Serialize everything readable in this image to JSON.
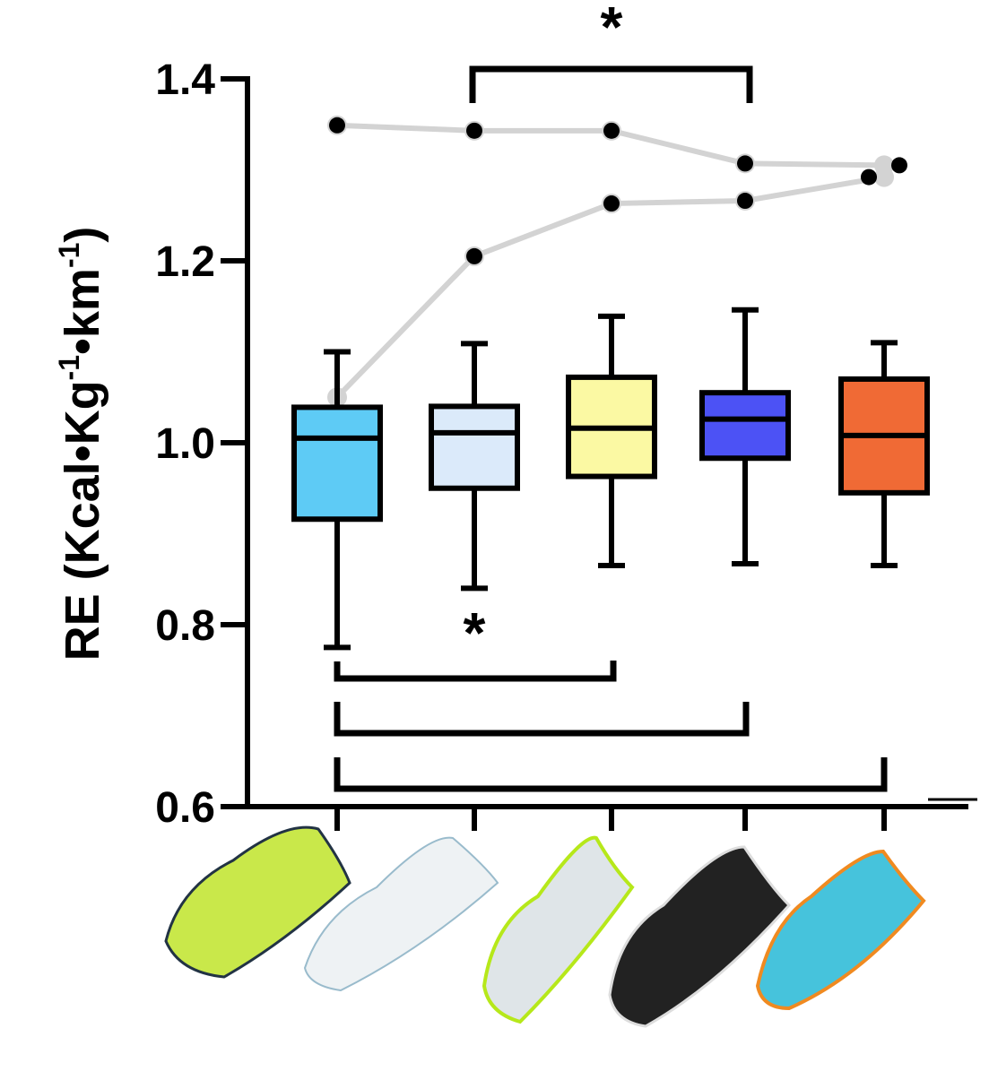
{
  "chart_data": {
    "type": "box",
    "y_label": [
      "RE (Kcal•Kg",
      "-1",
      "•km",
      "-1",
      ")"
    ],
    "categories": [
      null,
      null,
      null,
      null,
      null
    ],
    "ylim": [
      0.6,
      1.4
    ],
    "yticks": [
      0.6,
      0.8,
      {
        "value": 1,
        "label": "1.0"
      },
      1.2,
      1.4
    ],
    "annotations": [
      "*",
      "*"
    ],
    "series": [
      {
        "color": "#5ecbf5",
        "whisker_low": 0.775,
        "q1": 0.916,
        "median": 1.005,
        "q3": 1.039,
        "whisker_high": 1.1,
        "outliers": [
          1.349
        ]
      },
      {
        "color": "#dbeafa",
        "whisker_low": 0.84,
        "q1": 0.95,
        "median": 1.011,
        "q3": 1.04,
        "whisker_high": 1.109,
        "outliers": [
          1.343,
          1.205
        ]
      },
      {
        "color": "#fbf9a3",
        "whisker_low": 0.865,
        "q1": 0.963,
        "median": 1.016,
        "q3": 1.072,
        "whisker_high": 1.139,
        "outliers": [
          1.343,
          1.263
        ]
      },
      {
        "color": "#4c52f5",
        "whisker_low": 0.867,
        "q1": 0.983,
        "median": 1.026,
        "q3": 1.055,
        "whisker_high": 1.146,
        "outliers": [
          1.307,
          1.266
        ]
      },
      {
        "color": "#f06a35",
        "whisker_low": 0.865,
        "q1": 0.945,
        "median": 1.008,
        "q3": 1.07,
        "whisker_high": 1.11,
        "outliers": [
          1.292,
          1.305
        ]
      }
    ],
    "subjects": [
      {
        "color": "#d3d3d3",
        "values": [
          1.349,
          1.343,
          1.343,
          1.307,
          1.305
        ]
      },
      {
        "color": "#d3d3d3",
        "values": [
          1.05,
          1.205,
          1.263,
          1.266,
          1.292
        ]
      }
    ]
  }
}
